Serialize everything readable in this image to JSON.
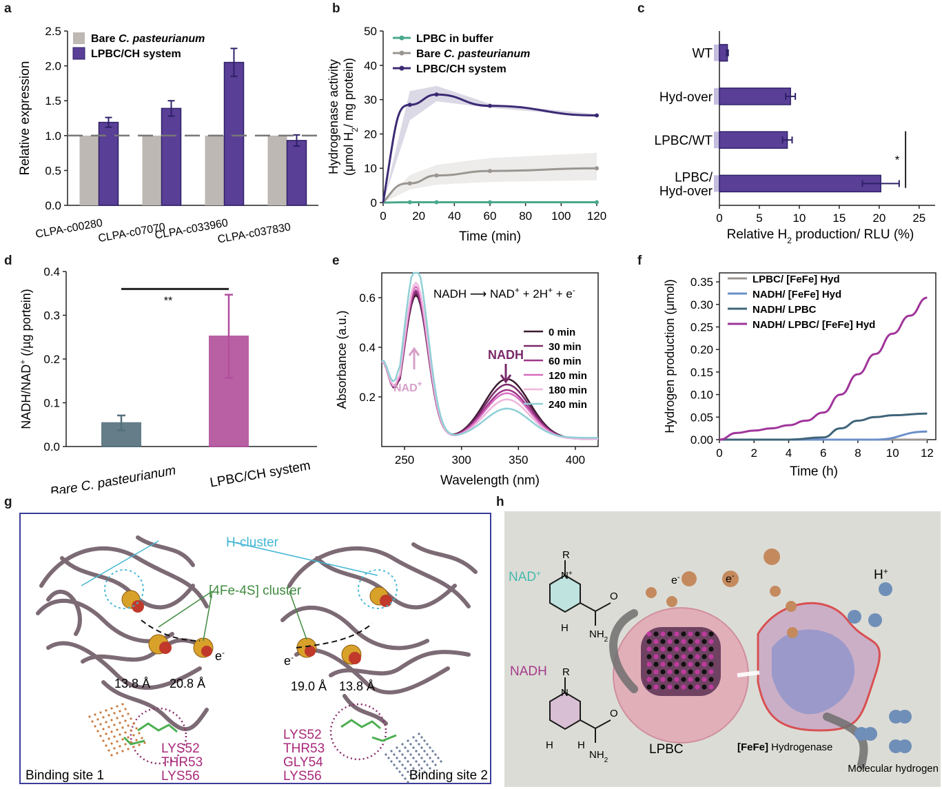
{
  "colors": {
    "gray": "#bdb8b3",
    "purple": "#5a3f97",
    "purple_dark": "#3b2a74",
    "teal": "#4aa88c",
    "slate": "#54707c",
    "magenta": "#b24f9c",
    "pink_magenta": "#a8287a"
  },
  "panel_letters": {
    "a": "a",
    "b": "b",
    "c": "c",
    "d": "d",
    "e": "e",
    "f": "f",
    "g": "g",
    "h": "h"
  },
  "chart_data": [
    {
      "id": "a",
      "type": "bar",
      "ylabel": "Relative expression",
      "ylim": [
        0,
        2.5
      ],
      "yticks": [
        "0.0",
        "0.5",
        "1.0",
        "1.5",
        "2.0",
        "2.5"
      ],
      "categories": [
        "CLPA-c00280",
        "CLPA-c07070",
        "CLPA-c033960",
        "CLPA-c037830"
      ],
      "reference_line": 1.0,
      "series": [
        {
          "name_prefix": "Bare ",
          "name_italic": "C. pasteurianum",
          "values": [
            1.0,
            1.0,
            1.0,
            1.0
          ],
          "color": "#bdb8b3"
        },
        {
          "name": "LPBC/CH system",
          "values": [
            1.19,
            1.39,
            2.05,
            0.93
          ],
          "errors": [
            0.07,
            0.11,
            0.2,
            0.08
          ],
          "color": "#5a3f97"
        }
      ],
      "legend": "top-left"
    },
    {
      "id": "b",
      "type": "line",
      "xlabel": "Time (min)",
      "ylabel_line1": "Hydrogenase activity",
      "ylabel_line2_pre": "(μmol H",
      "ylabel_line2_sub": "2",
      "ylabel_line2_post": "/ mg protein)",
      "xlim": [
        0,
        120
      ],
      "ylim": [
        0,
        50
      ],
      "xticks": [
        "0",
        "20",
        "40",
        "60",
        "80",
        "100",
        "120"
      ],
      "yticks": [
        "0",
        "10",
        "20",
        "30",
        "40",
        "50"
      ],
      "series": [
        {
          "name": "LPBC in buffer",
          "color": "#4aa88c",
          "x": [
            0,
            15,
            30,
            60,
            120
          ],
          "y": [
            0,
            0.1,
            0.1,
            0.1,
            0.1
          ],
          "band": 0.3
        },
        {
          "name_prefix": "Bare ",
          "name_italic": "C. pasteurianum",
          "color": "#9a9590",
          "x": [
            0,
            15,
            30,
            60,
            120
          ],
          "y": [
            0,
            5.6,
            7.9,
            9.2,
            10.0
          ],
          "band_upper": [
            0,
            8,
            11,
            13,
            14.5
          ],
          "band_lower": [
            0,
            3.8,
            5.2,
            6,
            6.5
          ]
        },
        {
          "name": "LPBC/CH system",
          "color": "#3b2a74",
          "x": [
            0,
            15,
            30,
            60,
            120
          ],
          "y": [
            0,
            28.5,
            31.5,
            28.2,
            25.4
          ],
          "band_upper": [
            0,
            32.5,
            34,
            28.8,
            25.8
          ],
          "band_lower": [
            0,
            24,
            29.5,
            27.6,
            25.0
          ]
        }
      ],
      "legend": "top-left"
    },
    {
      "id": "c",
      "type": "bar",
      "orientation": "horizontal",
      "xlabel_pre": "Relative H",
      "xlabel_sub": "2",
      "xlabel_post": " production/ RLU (%)",
      "xlim": [
        0,
        27
      ],
      "xticks": [
        "0",
        "5",
        "10",
        "15",
        "20",
        "25"
      ],
      "categories": [
        [
          "WT"
        ],
        [
          "Hyd-over"
        ],
        [
          "LPBC/WT"
        ],
        [
          "LPBC/",
          "Hyd-over"
        ]
      ],
      "values": [
        1.0,
        8.9,
        8.5,
        20.2
      ],
      "errors": [
        0.1,
        0.6,
        0.6,
        2.3
      ],
      "significance": "*",
      "color": "#5a3f97"
    },
    {
      "id": "d",
      "type": "bar",
      "ylabel_pre": "NADH/NAD",
      "ylabel_sup": "+",
      "ylabel_post": " (/µg portein)",
      "ylim": [
        0,
        0.4
      ],
      "yticks": [
        "0.0",
        "0.1",
        "0.2",
        "0.3",
        "0.4"
      ],
      "categories": [
        "Bare C. pasteurianum",
        "LPBC/CH system"
      ],
      "cat_italic": "C. pasteurianum",
      "values": [
        0.054,
        0.252
      ],
      "errors": [
        0.017,
        0.095
      ],
      "colors": [
        "#54707c",
        "#b24f9c"
      ],
      "significance": "**"
    },
    {
      "id": "e",
      "type": "line",
      "xlabel": "Wavelength (nm)",
      "ylabel": "Absorbance (a.u.)",
      "xlim": [
        230,
        420
      ],
      "ylim": [
        0,
        0.7
      ],
      "xticks": [
        "250",
        "300",
        "350",
        "400"
      ],
      "yticks": [
        "0.2",
        "0.4",
        "0.6"
      ],
      "reaction": {
        "a": "NADH",
        "b": "NAD",
        "c": " + 2H",
        "d": " + e"
      },
      "annotations": {
        "nad": "NAD",
        "nadh": "NADH"
      },
      "series": [
        {
          "name": "0 min",
          "color": "#3a1a2e",
          "peak260": 0.58,
          "peak340": 0.242,
          "base": 0.03
        },
        {
          "name": "30 min",
          "color": "#7a2a6a",
          "peak260": 0.59,
          "peak340": 0.22,
          "base": 0.03
        },
        {
          "name": "60 min",
          "color": "#a0368a",
          "peak260": 0.6,
          "peak340": 0.198,
          "base": 0.03
        },
        {
          "name": "120 min",
          "color": "#d86cc0",
          "peak260": 0.615,
          "peak340": 0.185,
          "base": 0.03
        },
        {
          "name": "180 min",
          "color": "#eeb6dc",
          "peak260": 0.63,
          "peak340": 0.16,
          "base": 0.03
        },
        {
          "name": "240 min",
          "color": "#8fcfd6",
          "peak260": 0.695,
          "peak340": 0.118,
          "base": 0.035
        }
      ],
      "legend": "right"
    },
    {
      "id": "f",
      "type": "line",
      "xlabel": "Time (h)",
      "ylabel": "Hydrogen production (μmol)",
      "xlim": [
        0,
        12.5
      ],
      "ylim": [
        0,
        0.37
      ],
      "xticks": [
        "0",
        "2",
        "4",
        "6",
        "8",
        "10",
        "12"
      ],
      "yticks": [
        "0.00",
        "0.05",
        "0.10",
        "0.15",
        "0.20",
        "0.25",
        "0.30",
        "0.35"
      ],
      "series": [
        {
          "name": "LPBC/ [FeFe] Hyd",
          "color": "#9a9590",
          "x": [
            0,
            12
          ],
          "y": [
            0,
            0
          ]
        },
        {
          "name": "NADH/ [FeFe] Hyd",
          "color": "#6b8fc9",
          "x": [
            0,
            9,
            12
          ],
          "y": [
            0,
            0,
            0.018
          ]
        },
        {
          "name": "NADH/ LPBC",
          "color": "#3e6478",
          "x": [
            0,
            4,
            6,
            7,
            8,
            9,
            10,
            12
          ],
          "y": [
            0,
            0,
            0.005,
            0.025,
            0.042,
            0.05,
            0.054,
            0.058
          ]
        },
        {
          "name": "NADH/ LPBC/ [FeFe] Hyd",
          "color": "#a0349a",
          "x": [
            0,
            1,
            2,
            3,
            4,
            5,
            6,
            7,
            8,
            9,
            10,
            11,
            12
          ],
          "y": [
            0,
            0.015,
            0.02,
            0.025,
            0.032,
            0.042,
            0.06,
            0.1,
            0.145,
            0.19,
            0.235,
            0.275,
            0.315
          ]
        }
      ],
      "legend": "top-left"
    }
  ],
  "panel_g": {
    "h_cluster": "H-cluster",
    "fe4s_cluster": "[4Fe-4S] cluster",
    "electron": "e",
    "left_distances": [
      "13.8 Å",
      "20.8 Å"
    ],
    "right_distances": [
      "19.0 Å",
      "13.8 Å"
    ],
    "left_residues": [
      "LYS52",
      "THR53",
      "LYS56"
    ],
    "right_residues": [
      "LYS52",
      "THR53",
      "GLY54",
      "LYS56"
    ],
    "left_site": "Binding site 1",
    "right_site": "Binding site 2"
  },
  "panel_h": {
    "nad_label": "NAD",
    "nadh_label": "NADH",
    "r": "R",
    "n": "N",
    "nh2": "NH",
    "o": "O",
    "h": "H",
    "electron": "e",
    "proton": "H",
    "lpbc": "LPBC",
    "hydrogenase_prefix": "[FeFe]",
    "hydrogenase": " Hydrogenase",
    "molecular_hydrogen": "Molecular hydrogen"
  }
}
